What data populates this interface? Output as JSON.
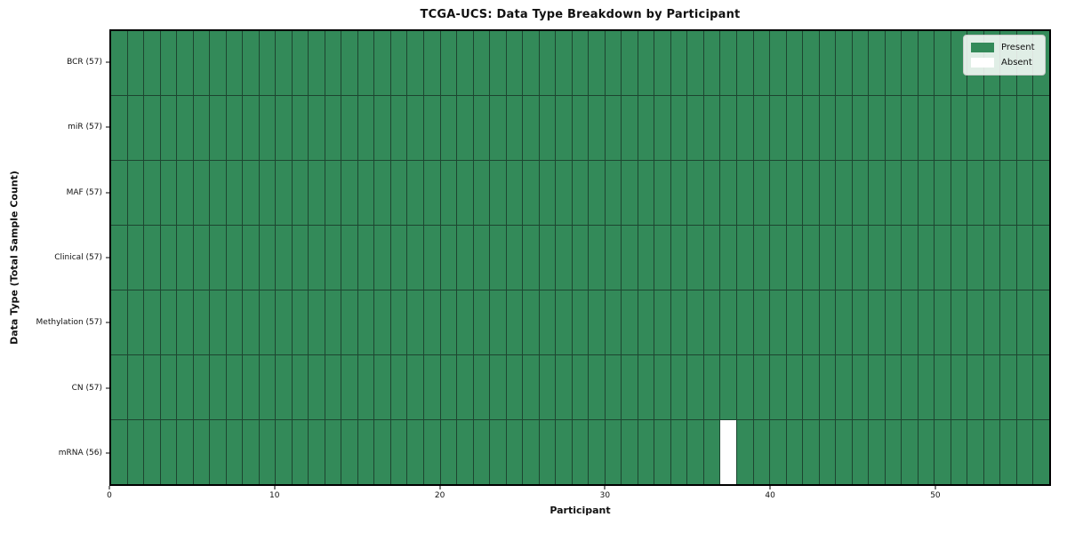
{
  "chart_data": {
    "type": "heatmap",
    "title": "TCGA-UCS: Data Type Breakdown by Participant",
    "xlabel": "Participant",
    "ylabel": "Data Type (Total Sample Count)",
    "x_ticks": [
      0,
      10,
      20,
      30,
      40,
      50
    ],
    "x_range": [
      0,
      57
    ],
    "n_participants": 57,
    "rows": [
      {
        "label": "BCR (57)",
        "data_type": "BCR",
        "total_samples": 57,
        "absent_participants": []
      },
      {
        "label": "miR (57)",
        "data_type": "miR",
        "total_samples": 57,
        "absent_participants": []
      },
      {
        "label": "MAF (57)",
        "data_type": "MAF",
        "total_samples": 57,
        "absent_participants": []
      },
      {
        "label": "Clinical (57)",
        "data_type": "Clinical",
        "total_samples": 57,
        "absent_participants": []
      },
      {
        "label": "Methylation (57)",
        "data_type": "Methylation",
        "total_samples": 57,
        "absent_participants": []
      },
      {
        "label": "CN (57)",
        "data_type": "CN",
        "total_samples": 57,
        "absent_participants": []
      },
      {
        "label": "mRNA (56)",
        "data_type": "mRNA",
        "total_samples": 56,
        "absent_participants": [
          37
        ]
      }
    ],
    "legend": [
      {
        "label": "Present",
        "color": "#338a59"
      },
      {
        "label": "Absent",
        "color": "#ffffff"
      }
    ],
    "colors": {
      "present": "#338a59",
      "absent": "#ffffff",
      "grid_line": "#1d4530",
      "frame": "#000000"
    },
    "legend_position": "upper right",
    "grid": "cell-edges"
  }
}
